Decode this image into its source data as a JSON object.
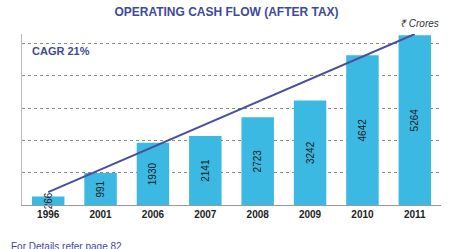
{
  "chart_data": {
    "type": "bar",
    "title": "OPERATING CASH FLOW (AFTER TAX)",
    "subtitle": "₹ Crores",
    "categories": [
      "1996",
      "2001",
      "2006",
      "2007",
      "2008",
      "2009",
      "2010",
      "2011"
    ],
    "values": [
      266,
      991,
      1930,
      2141,
      2723,
      3242,
      4642,
      5264
    ],
    "color": "#3cb9e2",
    "trend": {
      "type": "line",
      "color": "#4a4f9c",
      "values": [
        400,
        null,
        null,
        null,
        null,
        null,
        null,
        5300
      ]
    },
    "annotations": [
      "CAGR 21%",
      "For Details refer page 82"
    ],
    "ylim": [
      0,
      5300
    ],
    "yticks": [
      0,
      1000,
      2000,
      3000,
      4000,
      5000
    ],
    "grid": true,
    "data_labels": true,
    "tick_labels": "x"
  }
}
